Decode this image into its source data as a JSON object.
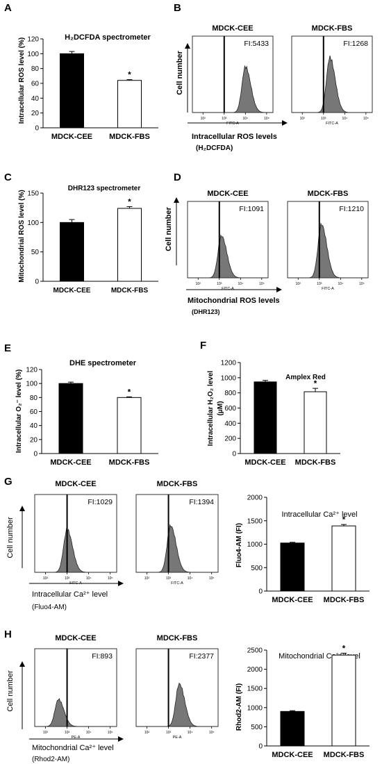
{
  "panels": [
    {
      "letter": "A"
    },
    {
      "letter": "B"
    },
    {
      "letter": "C"
    },
    {
      "letter": "D"
    },
    {
      "letter": "E"
    },
    {
      "letter": "F"
    },
    {
      "letter": "G"
    },
    {
      "letter": "H"
    }
  ],
  "bar_charts": {
    "A": {
      "title": "H₂DCFDA spectrometer",
      "ylabel": "Intracellular ROS level (%)",
      "ticks": [
        "0",
        "20",
        "40",
        "60",
        "80",
        "100",
        "120"
      ]
    },
    "C": {
      "title": "DHR123 spectrometer",
      "ylabel": "Mitochondrial ROS level (%)",
      "ticks": [
        "0",
        "50",
        "100",
        "150"
      ]
    },
    "E": {
      "title": "DHE spectrometer",
      "ylabel": "Intracellular O₂⁻ level (%)",
      "ticks": [
        "0",
        "20",
        "40",
        "60",
        "80",
        "100",
        "120"
      ]
    },
    "F": {
      "title": "Amplex Red",
      "ylabel": "Intracellular H₂O₂ level",
      "ylabel2": "(μM)",
      "ticks": [
        "0",
        "200",
        "400",
        "600",
        "800",
        "1000",
        "1200"
      ]
    },
    "G": {
      "title": "Intracellular Ca²⁺ level",
      "ylabel": "Fluo4-AM (FI)",
      "ticks": [
        "0",
        "500",
        "1000",
        "1500",
        "2000"
      ]
    },
    "H": {
      "title": "Mitochondrial Ca²⁺ level",
      "ylabel": "Rhod2-AM (FI)",
      "ticks": [
        "0",
        "500",
        "1000",
        "1500",
        "2000",
        "2500"
      ]
    }
  },
  "histograms": {
    "B": {
      "ylabel": "Cell number",
      "xlabel": "Intracellular ROS levels",
      "probe": "(H₂DCFDA)",
      "channel": "FITC-A"
    },
    "D": {
      "ylabel": "Cell number",
      "xlabel": "Mitochondrial ROS levels",
      "probe": "(DHR123)",
      "channel": "FITC-A"
    },
    "G": {
      "ylabel": "Cell number",
      "xlabel": "Intracellular Ca²⁺ level",
      "probe": "(Fluo4-AM)",
      "channel": "FITC-A"
    },
    "H": {
      "ylabel": "Cell number",
      "xlabel": "Mitochondrial Ca²⁺ level",
      "probe": "(Rhod2-AM)",
      "channel": "PE-A"
    }
  },
  "histogram_plots": [
    {
      "panel": "B",
      "sample": "MDCK-CEE",
      "fi": "FI:5433",
      "peak_log": 4.0,
      "peak_height": 0.6
    },
    {
      "panel": "B",
      "sample": "MDCK-FBS",
      "fi": "FI:1268",
      "peak_log": 3.3,
      "peak_height": 0.72
    },
    {
      "panel": "D",
      "sample": "MDCK-CEE",
      "fi": "FI:1091",
      "peak_log": 3.1,
      "peak_height": 0.55
    },
    {
      "panel": "D",
      "sample": "MDCK-FBS",
      "fi": "FI:1210",
      "peak_log": 3.1,
      "peak_height": 0.7
    },
    {
      "panel": "G",
      "sample": "MDCK-CEE",
      "fi": "FI:1029",
      "peak_log": 3.0,
      "peak_height": 0.55
    },
    {
      "panel": "G",
      "sample": "MDCK-FBS",
      "fi": "FI:1394",
      "peak_log": 3.1,
      "peak_height": 0.6
    },
    {
      "panel": "H",
      "sample": "MDCK-CEE",
      "fi": "FI:893",
      "peak_log": 2.6,
      "peak_height": 0.35
    },
    {
      "panel": "H",
      "sample": "MDCK-FBS",
      "fi": "FI:2377",
      "peak_log": 3.5,
      "peak_height": 0.55
    }
  ],
  "log_tick_labels": [
    "10²",
    "10³",
    "10⁴",
    "10⁵"
  ],
  "significance_marker": "*",
  "chart_data": [
    {
      "panel": "A",
      "type": "bar",
      "title": "H₂DCFDA spectrometer",
      "ylabel": "Intracellular ROS level (%)",
      "categories": [
        "MDCK-CEE",
        "MDCK-FBS"
      ],
      "values": [
        100,
        64
      ],
      "errors": [
        3,
        1
      ],
      "significant": [
        false,
        true
      ],
      "ylim": [
        0,
        120
      ]
    },
    {
      "panel": "C",
      "type": "bar",
      "title": "DHR123 spectrometer",
      "ylabel": "Mitochondrial ROS level (%)",
      "categories": [
        "MDCK-CEE",
        "MDCK-FBS"
      ],
      "values": [
        100,
        124
      ],
      "errors": [
        5,
        3
      ],
      "significant": [
        false,
        true
      ],
      "ylim": [
        0,
        150
      ]
    },
    {
      "panel": "E",
      "type": "bar",
      "title": "DHE spectrometer",
      "ylabel": "Intracellular O₂⁻ level (%)",
      "categories": [
        "MDCK-CEE",
        "MDCK-FBS"
      ],
      "values": [
        100,
        80
      ],
      "errors": [
        2,
        1
      ],
      "significant": [
        false,
        true
      ],
      "ylim": [
        0,
        120
      ]
    },
    {
      "panel": "F",
      "type": "bar",
      "title": "Amplex Red",
      "ylabel": "Intracellular H₂O₂ level (μM)",
      "categories": [
        "MDCK-CEE",
        "MDCK-FBS"
      ],
      "values": [
        945,
        815
      ],
      "errors": [
        20,
        45
      ],
      "significant": [
        false,
        true
      ],
      "ylim": [
        0,
        1200
      ]
    },
    {
      "panel": "G",
      "type": "bar",
      "title": "Intracellular Ca²⁺ level",
      "ylabel": "Fluo4-AM (FI)",
      "categories": [
        "MDCK-CEE",
        "MDCK-FBS"
      ],
      "values": [
        1025,
        1390
      ],
      "errors": [
        15,
        30
      ],
      "significant": [
        false,
        true
      ],
      "ylim": [
        0,
        2000
      ]
    },
    {
      "panel": "H",
      "type": "bar",
      "title": "Mitochondrial Ca²⁺ level",
      "ylabel": "Rhod2-AM (FI)",
      "categories": [
        "MDCK-CEE",
        "MDCK-FBS"
      ],
      "values": [
        900,
        2370
      ],
      "errors": [
        20,
        50
      ],
      "significant": [
        false,
        true
      ],
      "ylim": [
        0,
        2500
      ]
    }
  ]
}
